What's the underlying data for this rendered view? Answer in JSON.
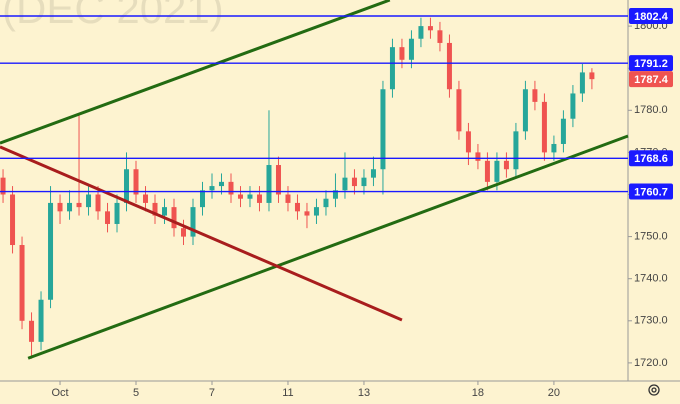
{
  "chart_data": {
    "type": "candlestick",
    "watermark": "(DEC 2021)",
    "x": [
      -1.5,
      -1.25,
      -1,
      -0.75,
      -0.5,
      -0.25,
      0,
      0.25,
      0.5,
      0.75,
      1,
      1.25,
      1.5,
      1.75,
      2,
      2.25,
      2.5,
      2.75,
      3,
      3.25,
      3.5,
      3.75,
      4,
      4.25,
      4.5,
      4.75,
      5,
      5.25,
      5.5,
      5.75,
      6,
      6.25,
      6.5,
      6.75,
      7,
      7.25,
      7.5,
      7.75,
      8,
      8.25,
      8.5,
      8.75,
      9,
      9.25,
      9.5,
      9.75,
      10,
      10.25,
      10.5,
      10.75,
      11,
      11.25,
      11.5,
      11.75,
      12,
      12.25,
      12.5,
      12.75,
      13,
      13.25,
      13.5,
      13.75,
      14
    ],
    "open": [
      1764,
      1760,
      1748,
      1730,
      1725,
      1735,
      1758,
      1756,
      1758,
      1757,
      1760,
      1756,
      1753,
      1758,
      1766,
      1760,
      1758,
      1755,
      1757,
      1752,
      1750,
      1757,
      1761,
      1762,
      1763,
      1760,
      1759,
      1760,
      1758,
      1767,
      1760,
      1758,
      1756,
      1755,
      1757,
      1759,
      1761,
      1764,
      1762,
      1764,
      1766,
      1785,
      1795,
      1792,
      1797,
      1800,
      1799,
      1796,
      1785,
      1775,
      1770,
      1768,
      1763,
      1768,
      1766,
      1775,
      1785,
      1782,
      1770,
      1772,
      1778,
      1784,
      1789
    ],
    "high": [
      1766,
      1762,
      1750,
      1732,
      1737,
      1762,
      1760,
      1761,
      1779,
      1762,
      1762,
      1758,
      1760,
      1770,
      1768,
      1762,
      1760,
      1759,
      1759,
      1754,
      1759,
      1763,
      1765,
      1765,
      1765,
      1762,
      1762,
      1762,
      1780,
      1769,
      1762,
      1760,
      1758,
      1759,
      1761,
      1765,
      1770,
      1766,
      1766,
      1769,
      1787,
      1797,
      1797,
      1799,
      1802,
      1802,
      1801,
      1798,
      1787,
      1777,
      1772,
      1770,
      1770,
      1770,
      1777,
      1787,
      1787,
      1784,
      1774,
      1780,
      1786,
      1791,
      1790
    ],
    "low": [
      1758,
      1746,
      1728,
      1721,
      1723,
      1733,
      1753,
      1754,
      1755,
      1755,
      1754,
      1751,
      1751,
      1756,
      1758,
      1756,
      1753,
      1753,
      1750,
      1748,
      1748,
      1755,
      1759,
      1760,
      1758,
      1757,
      1757,
      1756,
      1756,
      1758,
      1756,
      1754,
      1752,
      1753,
      1755,
      1757,
      1759,
      1760,
      1760,
      1762,
      1760,
      1783,
      1790,
      1790,
      1795,
      1797,
      1794,
      1783,
      1773,
      1767,
      1766,
      1761,
      1761,
      1764,
      1764,
      1773,
      1780,
      1768,
      1768,
      1770,
      1776,
      1782,
      1785
    ],
    "close": [
      1760,
      1748,
      1730,
      1725,
      1735,
      1758,
      1756,
      1758,
      1757,
      1760,
      1756,
      1753,
      1758,
      1766,
      1760,
      1758,
      1755,
      1757,
      1752,
      1750,
      1757,
      1761,
      1762,
      1763,
      1760,
      1759,
      1760,
      1758,
      1767,
      1760,
      1758,
      1756,
      1755,
      1757,
      1759,
      1761,
      1764,
      1762,
      1764,
      1766,
      1785,
      1795,
      1792,
      1797,
      1800,
      1799,
      1796,
      1785,
      1775,
      1770,
      1768,
      1763,
      1768,
      1766,
      1775,
      1785,
      1782,
      1770,
      1772,
      1778,
      1784,
      1789,
      1787.4
    ],
    "up_color": "#26a69a",
    "down_color": "#ef5350",
    "levels": [
      1802.4,
      1791.2,
      1768.6,
      1760.7
    ],
    "level_color": "#1a1aff",
    "trendlines": [
      {
        "color": "#236b12",
        "x": [
          -1.58,
          8.68
        ],
        "y": [
          1772.2,
          1806.2
        ]
      },
      {
        "color": "#236b12",
        "x": [
          -0.84,
          14.95
        ],
        "y": [
          1721.1,
          1773.9
        ]
      },
      {
        "color": "#a81d1d",
        "x": [
          -1.58,
          9.0
        ],
        "y": [
          1771.3,
          1730.2
        ]
      }
    ],
    "xlim": [
      -1.58,
      14.95
    ],
    "xticks": [
      {
        "value": 0,
        "label": "Oct"
      },
      {
        "value": 2,
        "label": "5"
      },
      {
        "value": 4,
        "label": "7"
      },
      {
        "value": 6,
        "label": "11"
      },
      {
        "value": 8,
        "label": "13"
      },
      {
        "value": 11,
        "label": "18"
      },
      {
        "value": 13,
        "label": "20"
      }
    ],
    "ylim": [
      1715.7,
      1806.2
    ],
    "yticks": [
      {
        "value": 1720,
        "label": "1720.0"
      },
      {
        "value": 1730,
        "label": "1730.0"
      },
      {
        "value": 1740,
        "label": "1740.0"
      },
      {
        "value": 1750,
        "label": "1750.0"
      },
      {
        "value": 1760,
        "label": "1760.0"
      },
      {
        "value": 1770,
        "label": "1770.0"
      },
      {
        "value": 1780,
        "label": "1780.0"
      },
      {
        "value": 1790,
        "label": "1790.0"
      },
      {
        "value": 1800,
        "label": "1800.0"
      }
    ]
  }
}
